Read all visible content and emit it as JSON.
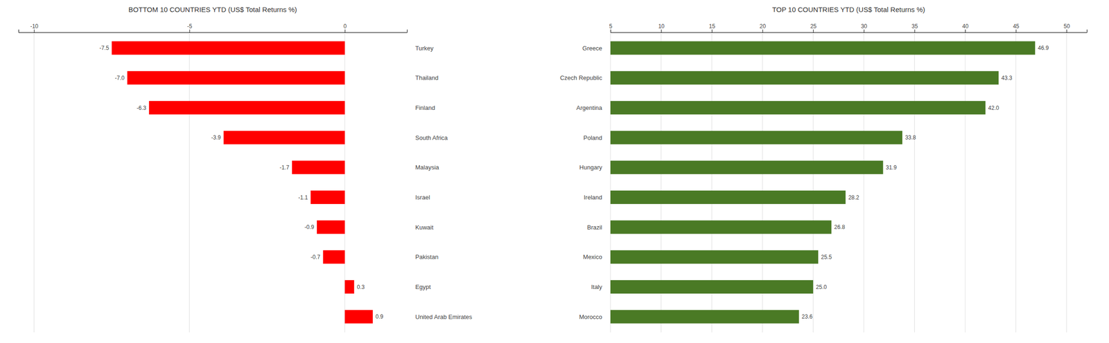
{
  "chart_data": [
    {
      "type": "bar",
      "orientation": "horizontal",
      "title": "BOTTOM 10 COUNTRIES YTD (US$ Total Returns %)",
      "categories": [
        "Turkey",
        "Thailand",
        "Finland",
        "South Africa",
        "Malaysia",
        "Israel",
        "Kuwait",
        "Pakistan",
        "Egypt",
        "United Arab Emirates"
      ],
      "values": [
        -7.5,
        -7.0,
        -6.3,
        -3.9,
        -1.7,
        -1.1,
        -0.9,
        -0.7,
        0.3,
        0.9
      ],
      "value_labels": [
        "-7.5",
        "-7.0",
        "-6.3",
        "-3.9",
        "-1.7",
        "-1.1",
        "-0.9",
        "-0.7",
        "0.3",
        "0.9"
      ],
      "color": "#FF0000",
      "xlim": [
        -10.5,
        2.0
      ],
      "xticks": [
        -10,
        -5,
        0
      ],
      "grid": true,
      "data_labels": true
    },
    {
      "type": "bar",
      "orientation": "horizontal",
      "title": "TOP 10 COUNTRIES YTD (US$ Total Returns %)",
      "categories": [
        "Greece",
        "Czech Republic",
        "Argentina",
        "Poland",
        "Hungary",
        "Ireland",
        "Brazil",
        "Mexico",
        "Italy",
        "Morocco"
      ],
      "values": [
        46.9,
        43.3,
        42.0,
        33.8,
        31.9,
        28.2,
        26.8,
        25.5,
        25.0,
        23.6
      ],
      "value_labels": [
        "46.9",
        "43.3",
        "42.0",
        "33.8",
        "31.9",
        "28.2",
        "26.8",
        "25.5",
        "25.0",
        "23.6"
      ],
      "color": "#4A7A25",
      "xlim": [
        5,
        52
      ],
      "xticks": [
        5,
        10,
        15,
        20,
        25,
        30,
        35,
        40,
        45,
        50
      ],
      "grid": true,
      "data_labels": true
    }
  ]
}
